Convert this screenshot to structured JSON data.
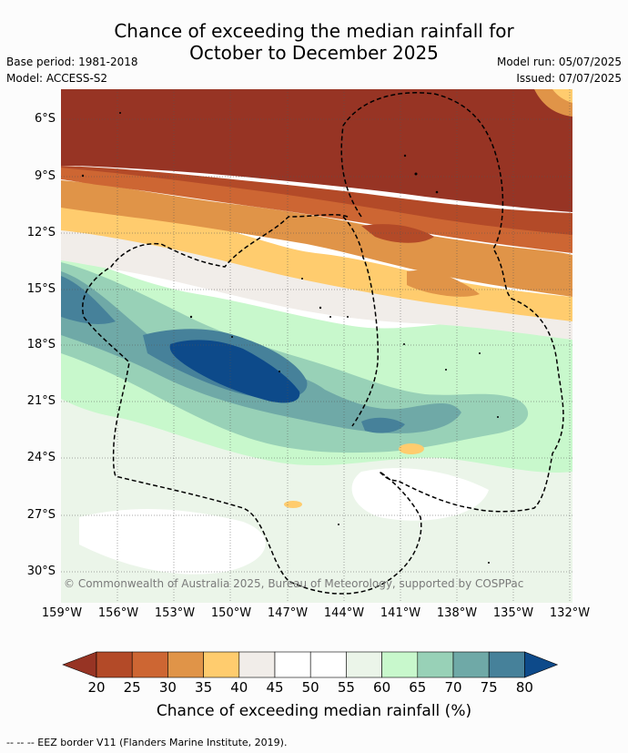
{
  "header": {
    "title_line1": "Chance of exceeding the median rainfall for",
    "title_line2": "October to December 2025",
    "base_period": "Base period: 1981-2018",
    "model": "Model: ACCESS-S2",
    "model_run": "Model run: 05/07/2025",
    "issued": "Issued: 07/07/2025"
  },
  "map": {
    "latitude_labels": [
      "6°S",
      "9°S",
      "12°S",
      "15°S",
      "18°S",
      "21°S",
      "24°S",
      "27°S",
      "30°S"
    ],
    "longitude_labels": [
      "159°W",
      "156°W",
      "153°W",
      "150°W",
      "147°W",
      "144°W",
      "141°W",
      "138°W",
      "135°W",
      "132°W"
    ],
    "copyright": "© Commonwealth of Australia 2025, Bureau of Meteorology, supported by COSPPac"
  },
  "colorbar": {
    "colors": [
      "#973424",
      "#b34a28",
      "#cd6633",
      "#e09448",
      "#ffcc6e",
      "#f1ede9",
      "#ffffff",
      "#ffffff",
      "#ebf5e9",
      "#c8f8cc",
      "#98d1b7",
      "#6fa9a7",
      "#46819a",
      "#0d4a8a"
    ],
    "tick_labels": [
      "20",
      "25",
      "30",
      "35",
      "40",
      "45",
      "50",
      "55",
      "60",
      "65",
      "70",
      "75",
      "80"
    ],
    "title": "Chance of exceeding median rainfall (%)"
  },
  "footnote": "--  --  -- EEZ border V11 (Flanders Marine Institute, 2019)."
}
